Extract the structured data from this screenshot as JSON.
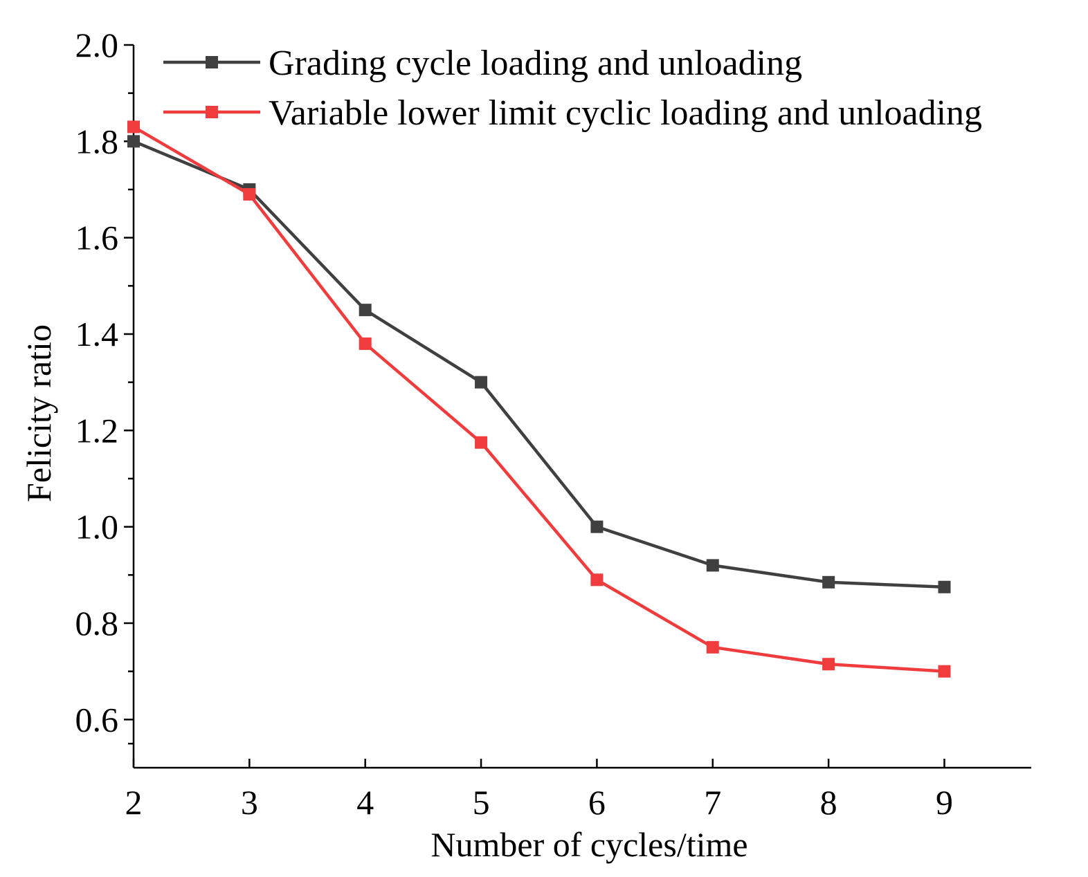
{
  "chart_data": {
    "type": "line",
    "title": "",
    "xlabel": "Number of cycles/time",
    "ylabel": "Felicity ratio",
    "x": [
      2,
      3,
      4,
      5,
      6,
      7,
      8,
      9
    ],
    "xlim": [
      2,
      9.75
    ],
    "ylim": [
      0.5,
      2.0
    ],
    "xticks": [
      2,
      3,
      4,
      5,
      6,
      7,
      8,
      9
    ],
    "yticks": [
      0.6,
      0.8,
      1.0,
      1.2,
      1.4,
      1.6,
      1.8,
      2.0
    ],
    "xtick_labels": [
      "2",
      "3",
      "4",
      "5",
      "6",
      "7",
      "8",
      "9"
    ],
    "ytick_labels": [
      "0.6",
      "0.8",
      "1.0",
      "1.2",
      "1.4",
      "1.6",
      "1.8",
      "2.0"
    ],
    "grid": false,
    "legend_position": "top-right",
    "series": [
      {
        "name": "Grading cycle loading and unloading",
        "color": "#404040",
        "marker": "square",
        "values": [
          1.8,
          1.7,
          1.45,
          1.3,
          1.0,
          0.92,
          0.885,
          0.875
        ]
      },
      {
        "name": "Variable lower limit cyclic loading and unloading",
        "color": "#f03c3c",
        "marker": "square",
        "values": [
          1.83,
          1.69,
          1.38,
          1.175,
          0.89,
          0.75,
          0.715,
          0.7
        ]
      }
    ]
  }
}
